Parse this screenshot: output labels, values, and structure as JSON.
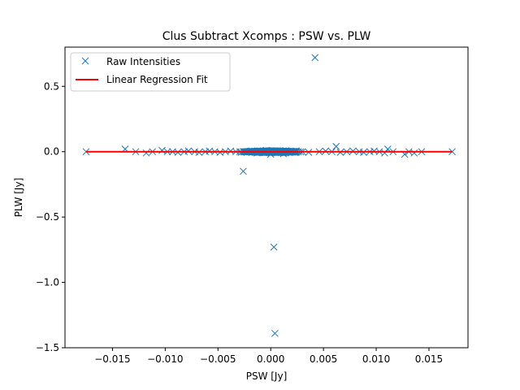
{
  "chart_data": {
    "type": "scatter",
    "title": "Clus Subtract Xcomps : PSW vs. PLW",
    "xlabel": "PSW [Jy]",
    "ylabel": "PLW [Jy]",
    "xlim": [
      -0.0195,
      0.0187
    ],
    "ylim": [
      -1.5,
      0.8
    ],
    "xticks": [
      -0.015,
      -0.01,
      -0.005,
      0.0,
      0.005,
      0.01,
      0.015
    ],
    "xtick_labels": [
      "−0.015",
      "−0.010",
      "−0.005",
      "0.000",
      "0.005",
      "0.010",
      "0.015"
    ],
    "yticks": [
      -1.5,
      -1.0,
      -0.5,
      0.0,
      0.5
    ],
    "ytick_labels": [
      "−1.5",
      "−1.0",
      "−0.5",
      "0.0",
      "0.5"
    ],
    "grid": false,
    "legend_position": "top-left",
    "series": [
      {
        "name": "Raw Intensities",
        "marker": "x",
        "color": "#1f77b4",
        "points": [
          [
            -0.0175,
            0.0
          ],
          [
            -0.0138,
            0.02
          ],
          [
            -0.0128,
            0.0
          ],
          [
            -0.0118,
            -0.01
          ],
          [
            -0.0112,
            0.0
          ],
          [
            -0.0103,
            0.01
          ],
          [
            -0.0098,
            0.0
          ],
          [
            -0.0093,
            0.0
          ],
          [
            -0.0088,
            -0.005
          ],
          [
            -0.0082,
            0.0
          ],
          [
            -0.0078,
            0.005
          ],
          [
            -0.0072,
            0.0
          ],
          [
            -0.0068,
            -0.005
          ],
          [
            -0.0062,
            0.0
          ],
          [
            -0.0058,
            0.005
          ],
          [
            -0.0053,
            0.0
          ],
          [
            -0.0048,
            -0.005
          ],
          [
            -0.0043,
            0.0
          ],
          [
            -0.0038,
            0.005
          ],
          [
            -0.0033,
            0.0
          ],
          [
            -0.0028,
            -0.005
          ],
          [
            -0.0026,
            -0.15
          ],
          [
            -0.0022,
            0.0
          ],
          [
            -0.0018,
            0.005
          ],
          [
            -0.0013,
            -0.01
          ],
          [
            -0.0008,
            0.0
          ],
          [
            -0.0004,
            0.01
          ],
          [
            0.0,
            -0.02
          ],
          [
            0.0003,
            -0.73
          ],
          [
            0.0004,
            -1.39
          ],
          [
            0.0006,
            0.0
          ],
          [
            0.0012,
            -0.015
          ],
          [
            0.0018,
            0.0
          ],
          [
            0.0024,
            0.005
          ],
          [
            0.003,
            0.0
          ],
          [
            0.0036,
            -0.005
          ],
          [
            0.0042,
            0.72
          ],
          [
            0.0046,
            0.0
          ],
          [
            0.0052,
            0.005
          ],
          [
            0.0058,
            0.0
          ],
          [
            0.0062,
            0.04
          ],
          [
            0.0066,
            -0.005
          ],
          [
            0.0072,
            0.0
          ],
          [
            0.0078,
            0.005
          ],
          [
            0.0084,
            0.0
          ],
          [
            0.0088,
            -0.005
          ],
          [
            0.0094,
            0.0
          ],
          [
            0.0098,
            0.005
          ],
          [
            0.0103,
            0.0
          ],
          [
            0.0108,
            -0.01
          ],
          [
            0.0111,
            0.02
          ],
          [
            0.0116,
            0.0
          ],
          [
            0.0127,
            -0.02
          ],
          [
            0.0131,
            0.0
          ],
          [
            0.0136,
            -0.01
          ],
          [
            0.0143,
            0.0
          ],
          [
            0.0172,
            0.0
          ]
        ]
      },
      {
        "name": "Linear Regression Fit",
        "type": "line",
        "color": "#ff0000",
        "points": [
          [
            -0.0175,
            0.0
          ],
          [
            0.0172,
            0.0
          ]
        ]
      }
    ]
  }
}
